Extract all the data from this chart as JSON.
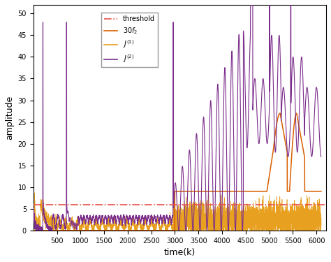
{
  "title": "",
  "xlabel": "time(k)",
  "ylabel": "amplitude",
  "xlim": [
    0,
    6200
  ],
  "ylim": [
    0,
    52
  ],
  "threshold_value": 6.0,
  "threshold_color": "#e8534a",
  "J1_color": "#e8a020",
  "J2_color": "#7b2d8b",
  "f2_color": "#d95f00",
  "yticks": [
    0,
    5,
    10,
    15,
    20,
    25,
    30,
    35,
    40,
    45,
    50
  ],
  "xticks": [
    500,
    1000,
    1500,
    2000,
    2500,
    3000,
    3500,
    4000,
    4500,
    5000,
    5500,
    6000
  ],
  "seed": 42
}
